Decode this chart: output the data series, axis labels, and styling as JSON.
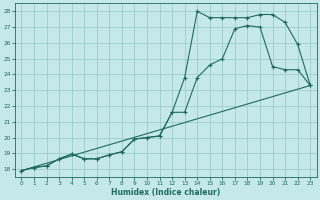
{
  "bg_color": "#c5e8e8",
  "grid_color": "#9ecece",
  "line_color": "#1e6b5e",
  "xlabel": "Humidex (Indice chaleur)",
  "xlim": [
    -0.5,
    23.5
  ],
  "ylim": [
    17.5,
    28.5
  ],
  "xticks": [
    0,
    1,
    2,
    3,
    4,
    5,
    6,
    7,
    8,
    9,
    10,
    11,
    12,
    13,
    14,
    15,
    16,
    17,
    18,
    19,
    20,
    21,
    22,
    23
  ],
  "yticks": [
    18,
    19,
    20,
    21,
    22,
    23,
    24,
    25,
    26,
    27,
    28
  ],
  "line1_x": [
    0,
    1,
    2,
    3,
    4,
    5,
    6,
    7,
    8,
    9,
    10,
    11,
    12,
    13,
    14,
    15,
    16,
    17,
    18,
    19,
    20,
    21,
    22,
    23
  ],
  "line1_y": [
    17.9,
    18.1,
    18.2,
    18.65,
    18.95,
    18.65,
    18.65,
    18.9,
    19.1,
    19.9,
    20.0,
    20.1,
    21.6,
    23.8,
    28.0,
    27.6,
    27.6,
    27.6,
    27.6,
    27.8,
    27.8,
    27.3,
    25.9,
    23.3
  ],
  "line2_x": [
    0,
    1,
    2,
    3,
    4,
    5,
    6,
    7,
    8,
    9,
    10,
    11,
    12,
    13,
    14,
    15,
    16,
    17,
    18,
    19,
    20,
    21,
    22,
    23
  ],
  "line2_y": [
    17.9,
    18.1,
    18.2,
    18.65,
    18.95,
    18.65,
    18.65,
    18.9,
    19.1,
    19.9,
    20.0,
    20.1,
    21.6,
    21.6,
    23.8,
    24.6,
    25.0,
    26.9,
    27.1,
    27.0,
    24.5,
    24.3,
    24.3,
    23.3
  ],
  "line3_x": [
    0,
    23
  ],
  "line3_y": [
    17.9,
    23.3
  ]
}
